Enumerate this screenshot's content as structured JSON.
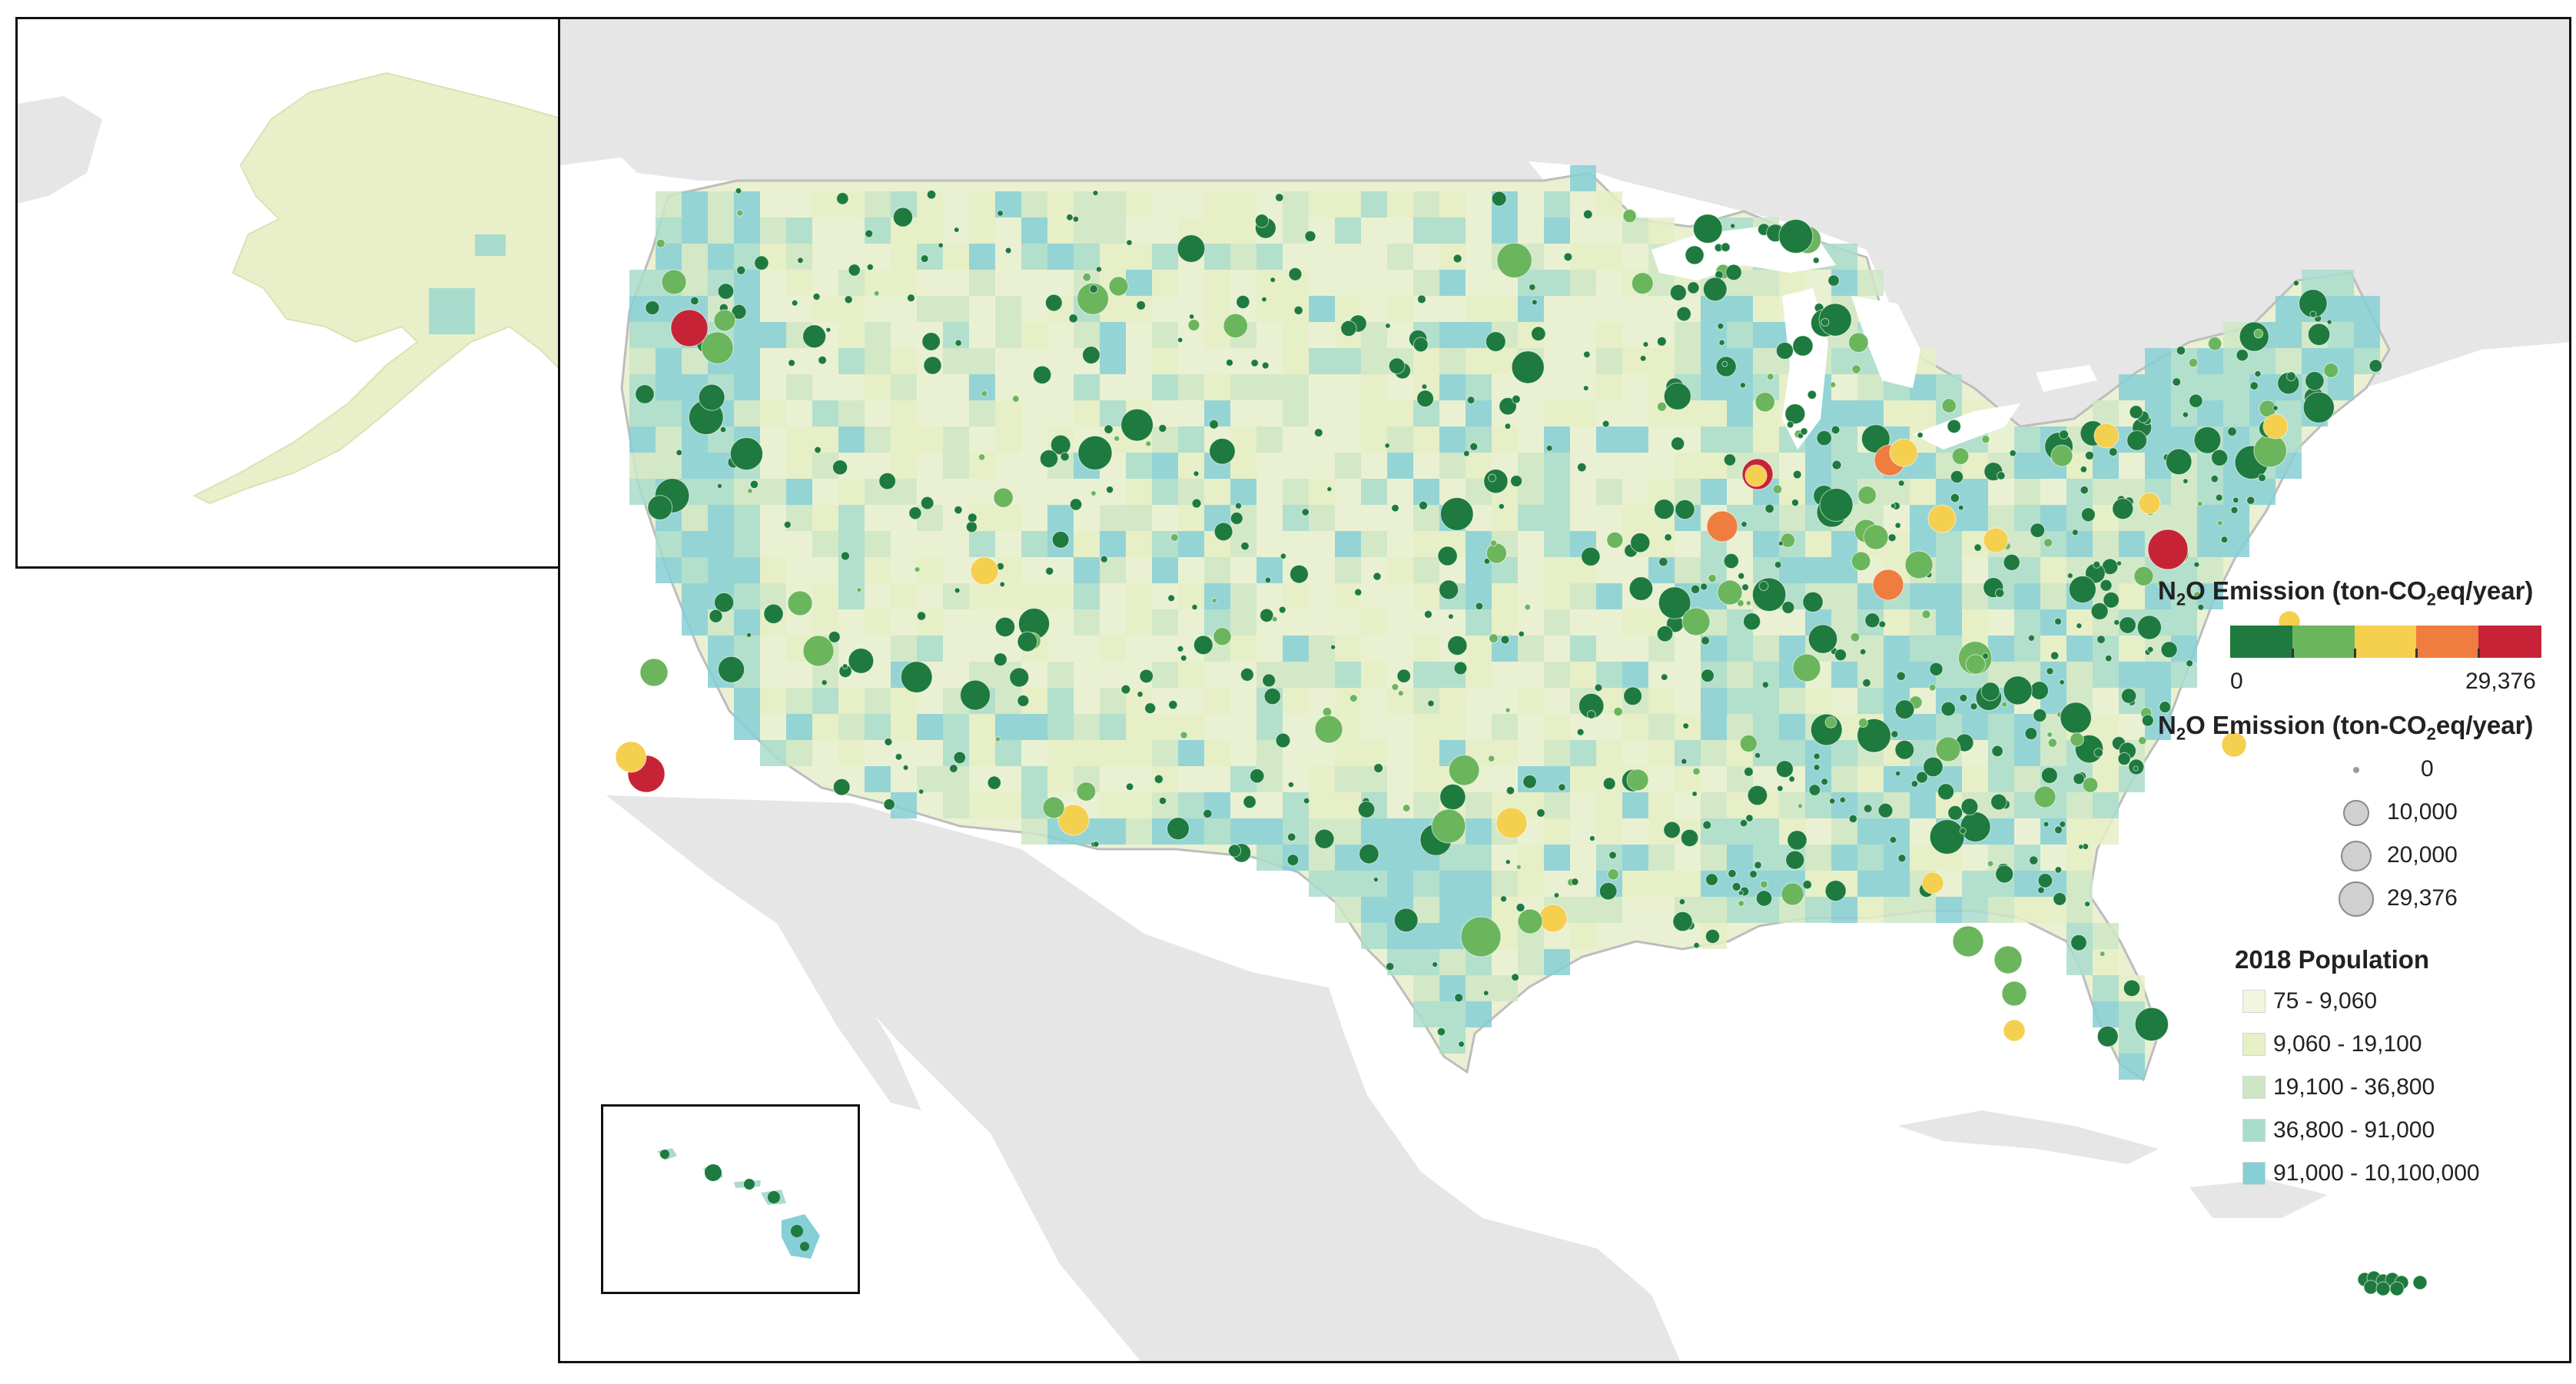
{
  "emission_legend": {
    "title_prefix": "N",
    "title_sub": "2",
    "title_mid": "O Emission (ton-CO",
    "title_sub2": "2",
    "title_suffix": "eq/year)",
    "min_label": "0",
    "max_label": "29,376",
    "colors": [
      "#1e7a3e",
      "#6bb55c",
      "#f5cf4e",
      "#ef7d3f",
      "#c62337"
    ]
  },
  "size_legend": {
    "title_prefix": "N",
    "title_sub": "2",
    "title_mid": "O Emission (ton-CO",
    "title_sub2": "2",
    "title_suffix": "eq/year)",
    "items": [
      {
        "label": "0",
        "value": 0
      },
      {
        "label": "10,000",
        "value": 10000
      },
      {
        "label": "20,000",
        "value": 20000
      },
      {
        "label": "29,376",
        "value": 29376
      }
    ]
  },
  "population_legend": {
    "title": "2018 Population",
    "items": [
      {
        "label": "75 - 9,060",
        "color": "#f3f6df"
      },
      {
        "label": "9,060 - 19,100",
        "color": "#e6efc6"
      },
      {
        "label": "19,100 - 36,800",
        "color": "#cfe6c6"
      },
      {
        "label": "36,800 - 91,000",
        "color": "#a9dccc"
      },
      {
        "label": "91,000 - 10,100,000",
        "color": "#86cfd6"
      }
    ]
  },
  "colors": {
    "water": "#ffffff",
    "foreign_land": "#e6e6e6",
    "boundary": "#c8c8c8"
  }
}
